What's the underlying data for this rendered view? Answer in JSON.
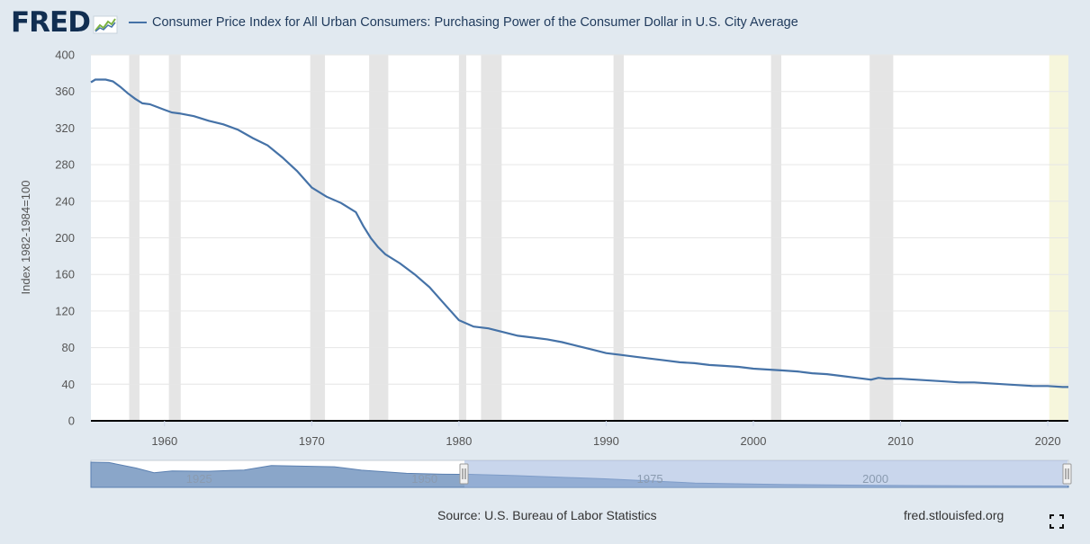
{
  "header": {
    "logo": "FRED",
    "legend_label": "Consumer Price Index for All Urban Consumers: Purchasing Power of the Consumer Dollar in U.S. City Average"
  },
  "footer": {
    "source": "Source: U.S. Bureau of Labor Statistics",
    "url": "fred.stlouisfed.org"
  },
  "colors": {
    "series": "#4572a7",
    "recession": "#e5e5e5",
    "highlight": "#f6f6dc",
    "background": "#e1e9f0"
  },
  "chart_data": {
    "type": "line",
    "title": "",
    "ylabel": "Index 1982-1984=100",
    "xlabel": "",
    "ylim": [
      0,
      400
    ],
    "xlim": [
      1955.0,
      2021.4
    ],
    "yticks": [
      0,
      40,
      80,
      120,
      160,
      200,
      240,
      280,
      320,
      360,
      400
    ],
    "xticks": [
      1960,
      1970,
      1980,
      1990,
      2000,
      2010,
      2020
    ],
    "grid": true,
    "series": [
      {
        "name": "Consumer Price Index for All Urban Consumers: Purchasing Power of the Consumer Dollar in U.S. City Average",
        "x": [
          1955.0,
          1955.3,
          1956.0,
          1956.5,
          1957.0,
          1957.5,
          1958.0,
          1958.5,
          1959.0,
          1959.5,
          1960.0,
          1960.5,
          1961.0,
          1962.0,
          1963.0,
          1964.0,
          1965.0,
          1966.0,
          1967.0,
          1968.0,
          1969.0,
          1970.0,
          1971.0,
          1972.0,
          1973.0,
          1973.5,
          1974.0,
          1974.5,
          1975.0,
          1976.0,
          1977.0,
          1978.0,
          1979.0,
          1980.0,
          1981.0,
          1981.5,
          1982.0,
          1983.0,
          1984.0,
          1985.0,
          1986.0,
          1987.0,
          1988.0,
          1989.0,
          1990.0,
          1991.0,
          1992.0,
          1993.0,
          1994.0,
          1995.0,
          1996.0,
          1997.0,
          1998.0,
          1999.0,
          2000.0,
          2001.0,
          2002.0,
          2003.0,
          2004.0,
          2005.0,
          2006.0,
          2007.0,
          2008.0,
          2008.5,
          2009.0,
          2010.0,
          2011.0,
          2012.0,
          2013.0,
          2014.0,
          2015.0,
          2016.0,
          2017.0,
          2018.0,
          2019.0,
          2020.0,
          2021.0,
          2021.4
        ],
        "y": [
          370,
          373,
          373,
          371,
          365,
          358,
          352,
          347,
          346,
          343,
          340,
          337,
          336,
          333,
          328,
          324,
          318,
          309,
          301,
          288,
          273,
          255,
          245,
          238,
          228,
          213,
          200,
          190,
          182,
          172,
          160,
          146,
          128,
          110,
          103,
          102,
          101,
          97,
          93,
          91,
          89,
          86,
          82,
          78,
          74,
          72,
          70,
          68,
          66,
          64,
          63,
          61,
          60,
          59,
          57,
          56,
          55,
          54,
          52,
          51,
          49,
          47,
          45,
          47,
          46,
          46,
          45,
          44,
          43,
          42,
          42,
          41,
          40,
          39,
          38,
          38,
          37,
          37
        ]
      }
    ],
    "recessions": [
      [
        1957.6,
        1958.3
      ],
      [
        1960.3,
        1961.1
      ],
      [
        1969.9,
        1970.9
      ],
      [
        1973.9,
        1975.2
      ],
      [
        1980.0,
        1980.5
      ],
      [
        1981.5,
        1982.9
      ],
      [
        1990.5,
        1991.2
      ],
      [
        2001.2,
        2001.9
      ],
      [
        2007.9,
        2009.5
      ],
      [
        2020.1,
        2021.4
      ]
    ]
  },
  "navigator": {
    "labels": [
      "1925",
      "1950",
      "1975",
      "2000"
    ]
  }
}
